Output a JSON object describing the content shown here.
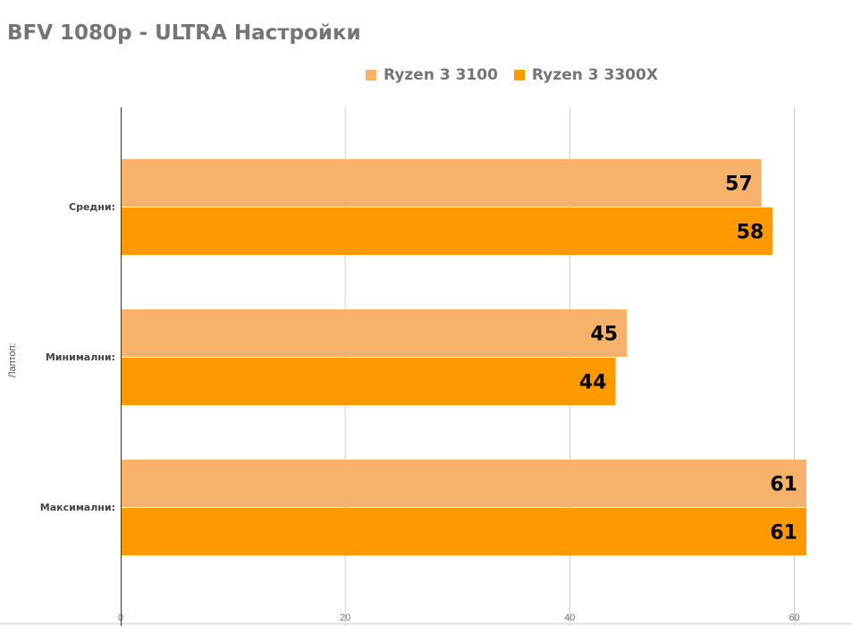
{
  "chart_data": {
    "type": "bar",
    "orientation": "horizontal",
    "title": "BFV 1080p - ULTRA Настройки",
    "ylabel": "Лаптоп:",
    "xlabel": "",
    "categories": [
      "Средни:",
      "Минимални:",
      "Максимални:"
    ],
    "series": [
      {
        "name": "Ryzen 3 3100",
        "color": "#f6b26b",
        "values": [
          57,
          45,
          61
        ]
      },
      {
        "name": "Ryzen 3 3300X",
        "color": "#ff9900",
        "values": [
          58,
          44,
          61
        ]
      }
    ],
    "xlim": [
      0,
      61
    ],
    "xticks": [
      0,
      20,
      40,
      60
    ],
    "grid": true,
    "legend_position": "top",
    "data_labels": true
  }
}
